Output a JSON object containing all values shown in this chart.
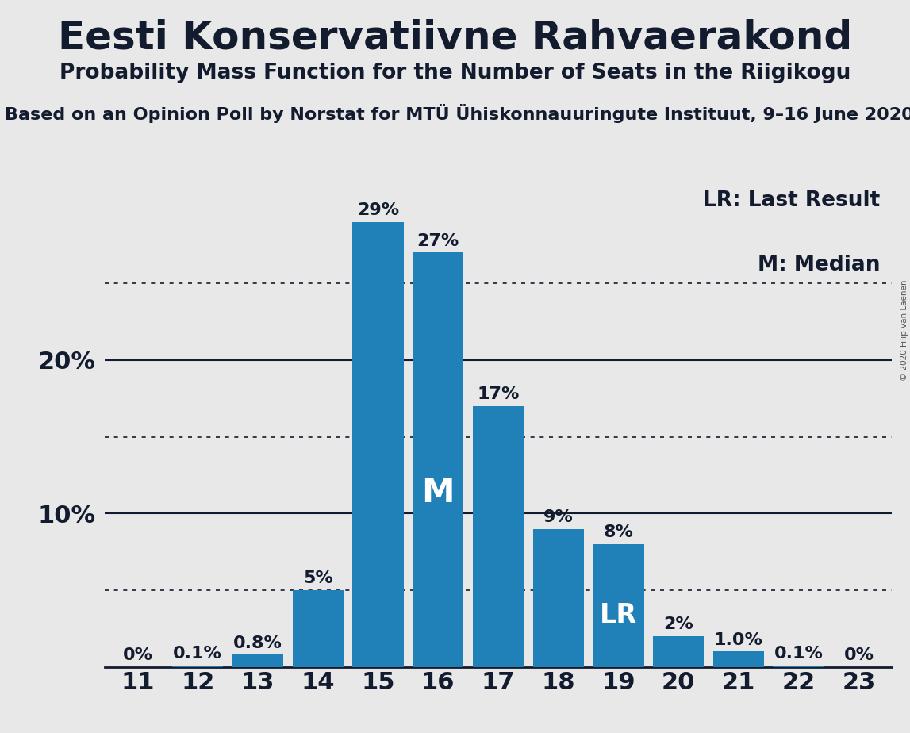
{
  "title": "Eesti Konservatiivne Rahvaerakond",
  "subtitle": "Probability Mass Function for the Number of Seats in the Riigikogu",
  "source": "Based on an Opinion Poll by Norstat for MTÜ Ühiskonnauuringute Instituut, 9–16 June 2020",
  "copyright": "© 2020 Filip van Laenen",
  "categories": [
    11,
    12,
    13,
    14,
    15,
    16,
    17,
    18,
    19,
    20,
    21,
    22,
    23
  ],
  "values": [
    0.0,
    0.1,
    0.8,
    5.0,
    29.0,
    27.0,
    17.0,
    9.0,
    8.0,
    2.0,
    1.0,
    0.1,
    0.0
  ],
  "labels": [
    "0%",
    "0.1%",
    "0.8%",
    "5%",
    "29%",
    "27%",
    "17%",
    "9%",
    "8%",
    "2%",
    "1.0%",
    "0.1%",
    "0%"
  ],
  "bar_color": "#2080B8",
  "median_idx": 5,
  "median_label": "M",
  "lr_idx": 8,
  "lr_label": "LR",
  "ylim": [
    0,
    32
  ],
  "ytick_positions": [
    10,
    20
  ],
  "ytick_labels": [
    "10%",
    "20%"
  ],
  "dotted_lines": [
    5,
    15,
    25
  ],
  "solid_lines": [
    10,
    20
  ],
  "background_color": "#E8E8E8",
  "title_fontsize": 36,
  "subtitle_fontsize": 19,
  "source_fontsize": 16,
  "bar_label_fontsize": 16,
  "axis_label_fontsize": 22,
  "legend_fontsize": 19,
  "text_color": "#131B2E"
}
